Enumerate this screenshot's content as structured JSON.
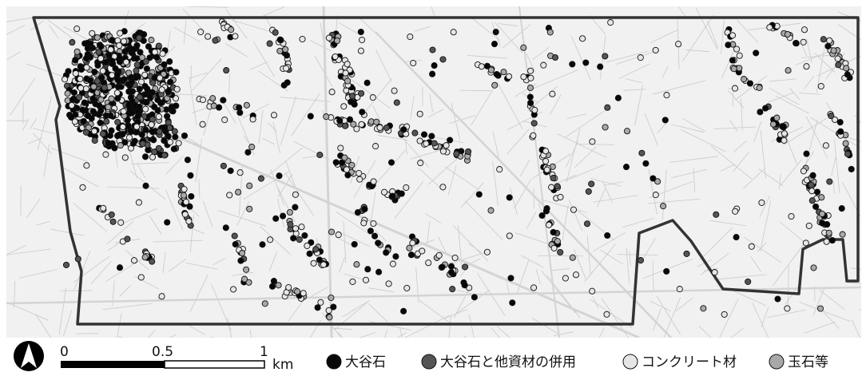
{
  "colors": {
    "background_map": "#f1f1f1",
    "street_lines": "#c9c9c9",
    "boundary": "#333333",
    "oya_stone": "#080808",
    "oya_combined": "#555555",
    "concrete": "#e6e6e6",
    "cobble": "#a9a9a9",
    "marker_stroke": "#111111"
  },
  "north_arrow": {
    "icon": "north-arrow-icon"
  },
  "scale_bar": {
    "ticks": [
      "0",
      "0.5",
      "1"
    ],
    "unit": "km"
  },
  "legend": {
    "items": [
      {
        "key": "oya_stone",
        "label": "大谷石",
        "color": "#080808"
      },
      {
        "key": "oya_combined",
        "label": "大谷石と他資材の併用",
        "color": "#555555"
      },
      {
        "key": "concrete",
        "label": "コンクリート材",
        "color": "#e6e6e6"
      },
      {
        "key": "cobble",
        "label": "玉石等",
        "color": "#a9a9a9"
      }
    ]
  }
}
